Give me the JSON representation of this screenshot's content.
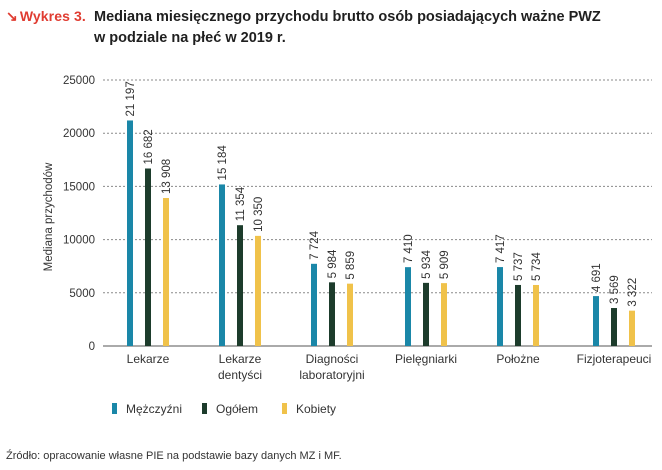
{
  "header": {
    "badge_arrow": "↘",
    "badge": "Wykres 3.",
    "badge_color": "#e03c31",
    "title_line1": "Mediana miesięcznego przychodu brutto osób posiadających ważne PWZ",
    "title_line2": "w podziale na płeć w 2019 r."
  },
  "source": "Źródło: opracowanie własne PIE na podstawie bazy danych MZ i MF.",
  "chart_data": {
    "type": "bar",
    "ylabel": "Mediana przychodów",
    "xlabel": "",
    "ylim": [
      0,
      25000
    ],
    "yticks": [
      "0",
      "5000",
      "10000",
      "15000",
      "20000",
      "25000"
    ],
    "grid": "horizontal dashed",
    "legend_position": "bottom-left",
    "categories": [
      [
        "Lekarze"
      ],
      [
        "Lekarze",
        "dentyści"
      ],
      [
        "Diagności",
        "laboratoryjni"
      ],
      [
        "Pielęgniarki"
      ],
      [
        "Położne"
      ],
      [
        "Fizjoterapeuci"
      ]
    ],
    "series": [
      {
        "name": "Mężczyźni",
        "color": "#1a87a8",
        "values": [
          21197,
          15184,
          7724,
          7410,
          7417,
          4691
        ],
        "labels": [
          "21 197",
          "15 184",
          "7 724",
          "7 410",
          "7 417",
          "4 691"
        ]
      },
      {
        "name": "Ogółem",
        "color": "#1d3c2c",
        "values": [
          16682,
          11354,
          5984,
          5934,
          5737,
          3569
        ],
        "labels": [
          "16 682",
          "11 354",
          "5 984",
          "5 934",
          "5 737",
          "3 569"
        ]
      },
      {
        "name": "Kobiety",
        "color": "#f0c24a",
        "values": [
          13908,
          10350,
          5859,
          5909,
          5734,
          3322
        ],
        "labels": [
          "13 908",
          "10 350",
          "5 859",
          "5 909",
          "5 734",
          "3 322"
        ]
      }
    ]
  }
}
